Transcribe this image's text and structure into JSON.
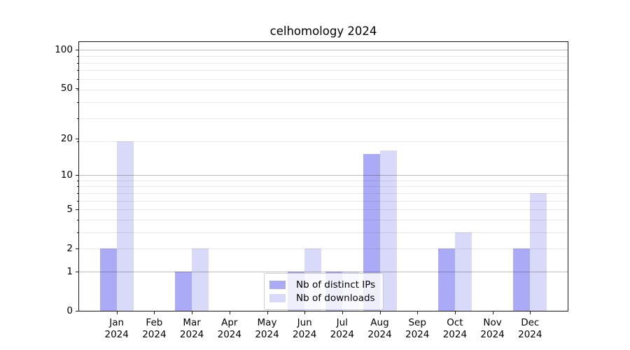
{
  "chart_data": {
    "type": "bar",
    "title": "celhomology 2024",
    "categories": [
      "Jan",
      "Feb",
      "Mar",
      "Apr",
      "May",
      "Jun",
      "Jul",
      "Aug",
      "Sep",
      "Oct",
      "Nov",
      "Dec"
    ],
    "year_label": "2024",
    "series": [
      {
        "name": "Nb of distinct IPs",
        "color": "#aaaaf6",
        "values": [
          2,
          0,
          1,
          0,
          0,
          1,
          1,
          15,
          0,
          2,
          0,
          2
        ]
      },
      {
        "name": "Nb of downloads",
        "color": "#d9d9f9",
        "values": [
          19,
          0,
          2,
          0,
          0,
          2,
          1,
          16,
          0,
          3,
          0,
          7
        ]
      }
    ],
    "yscale": "log1p",
    "ylim": [
      0,
      111
    ],
    "ytick_labels": [
      0,
      1,
      2,
      5,
      10,
      20,
      50,
      100
    ],
    "major_gridlines": [
      1,
      10,
      100
    ],
    "minor_gridlines": [
      2,
      3,
      4,
      5,
      6,
      7,
      8,
      9,
      19,
      29,
      39,
      49,
      59,
      69,
      79,
      89
    ],
    "grid": true,
    "legend_position": "lower center",
    "xlabel": "",
    "ylabel": ""
  }
}
